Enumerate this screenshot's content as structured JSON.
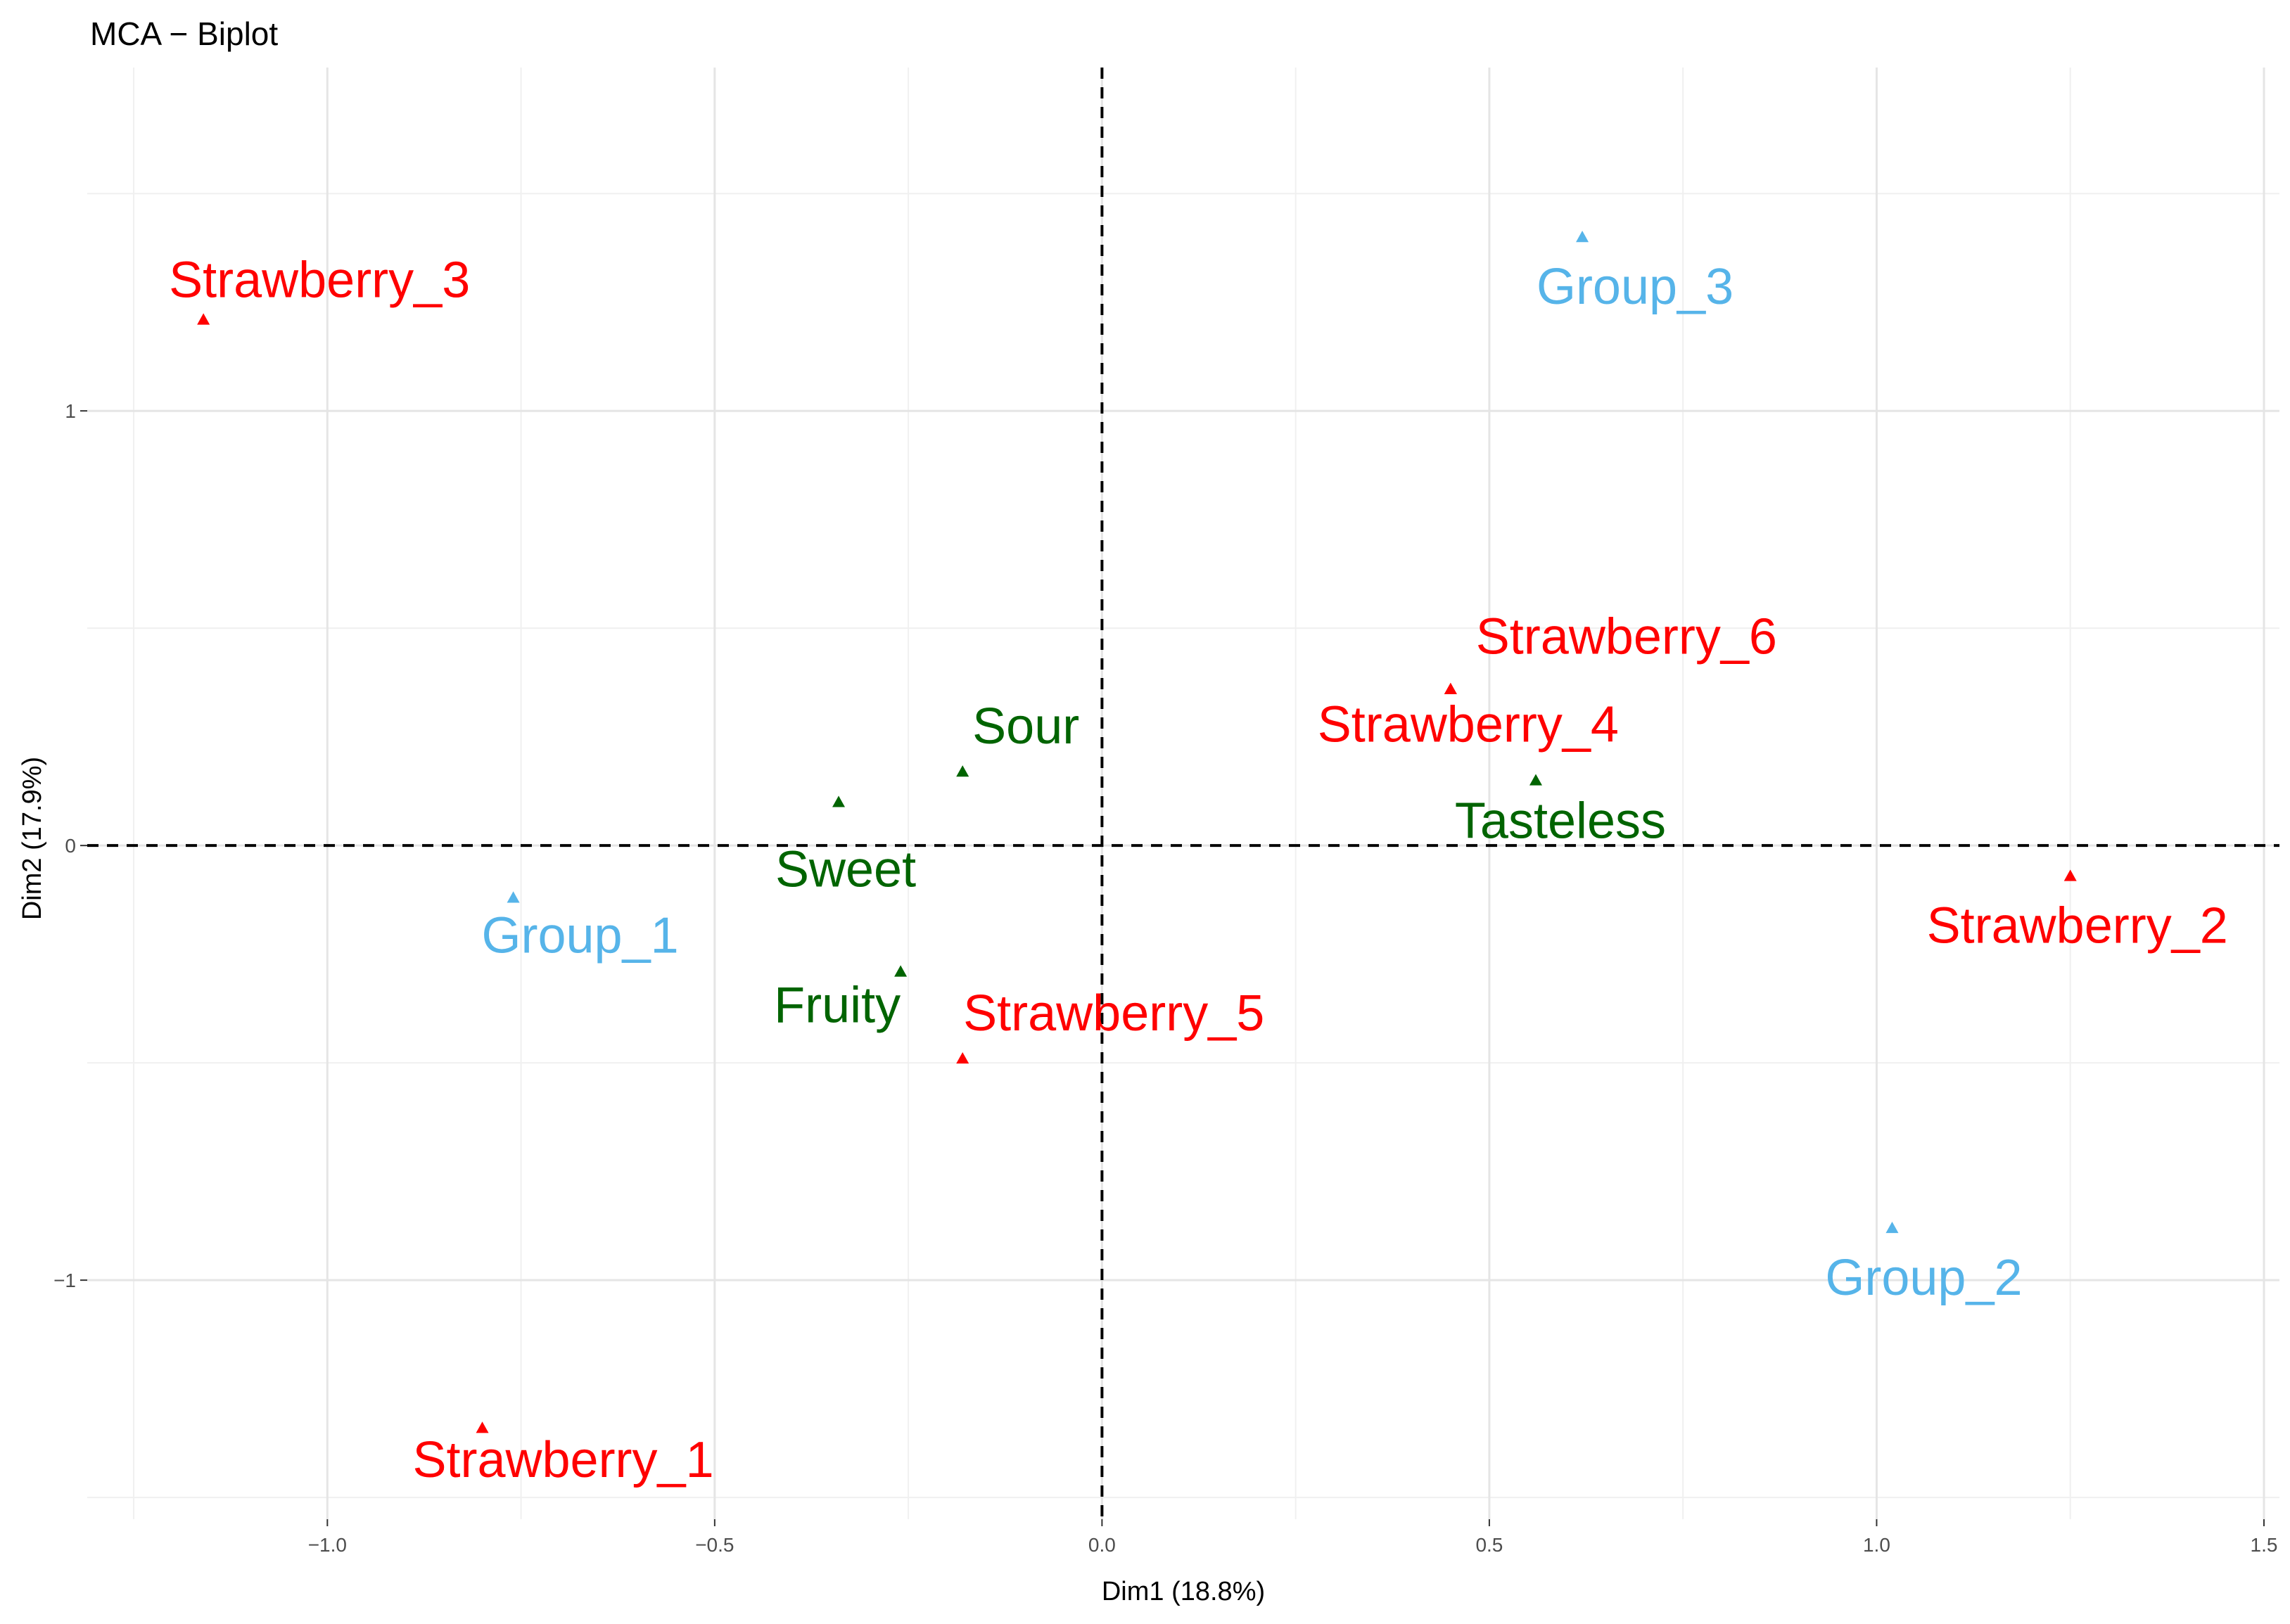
{
  "chart_data": {
    "type": "scatter",
    "title": "MCA − Biplot",
    "xlabel": "Dim1 (18.8%)",
    "ylabel": "Dim2 (17.9%)",
    "xlim": [
      -1.31,
      1.52
    ],
    "ylim": [
      -1.55,
      1.79
    ],
    "x_major_ticks": [
      -1.0,
      -0.5,
      0.0,
      0.5,
      1.0,
      1.5
    ],
    "x_tick_labels": [
      "−1.0",
      "−0.5",
      "0.0",
      "0.5",
      "1.0",
      "1.5"
    ],
    "y_major_ticks": [
      -1,
      0,
      1
    ],
    "y_tick_labels": [
      "−1",
      "0",
      "1"
    ],
    "x_minor_ticks": [
      -1.25,
      -0.75,
      -0.25,
      0.25,
      0.75,
      1.25
    ],
    "y_minor_ticks": [
      -1.5,
      -0.5,
      0.5,
      1.5
    ],
    "reference_lines": {
      "x": 0,
      "y": 0,
      "style": "dashed"
    },
    "grid": true,
    "colors": {
      "individuals": "#ff0000",
      "groups": "#56b4e9",
      "variables": "#006400"
    },
    "series": [
      {
        "name": "individuals",
        "color": "#ff0000",
        "points": [
          {
            "label": "Strawberry_1",
            "x": -0.8,
            "y": -1.34,
            "label_pos": "below"
          },
          {
            "label": "Strawberry_2",
            "x": 1.25,
            "y": -0.07,
            "label_pos": "below"
          },
          {
            "label": "Strawberry_3",
            "x": -1.16,
            "y": 1.21,
            "label_pos": "above"
          },
          {
            "label": "Strawberry_4",
            "x": 0.45,
            "y": 0.36,
            "label_pos": "below"
          },
          {
            "label": "Strawberry_5",
            "x": -0.18,
            "y": -0.49,
            "label_pos": "above"
          },
          {
            "label": "Strawberry_6",
            "x": 0.45,
            "y": 0.36,
            "label_pos": "above-right"
          }
        ]
      },
      {
        "name": "groups",
        "color": "#56b4e9",
        "points": [
          {
            "label": "Group_1",
            "x": -0.76,
            "y": -0.12,
            "label_pos": "below"
          },
          {
            "label": "Group_2",
            "x": 1.02,
            "y": -0.88,
            "label_pos": "below"
          },
          {
            "label": "Group_3",
            "x": 0.62,
            "y": 1.4,
            "label_pos": "below"
          }
        ]
      },
      {
        "name": "variables",
        "color": "#006400",
        "points": [
          {
            "label": "Sour",
            "x": -0.18,
            "y": 0.17,
            "label_pos": "above"
          },
          {
            "label": "Sweet",
            "x": -0.34,
            "y": 0.1,
            "label_pos": "below"
          },
          {
            "label": "Fruity",
            "x": -0.26,
            "y": -0.29,
            "label_pos": "below-left"
          },
          {
            "label": "Tasteless",
            "x": 0.56,
            "y": 0.15,
            "label_pos": "below"
          }
        ]
      }
    ]
  }
}
